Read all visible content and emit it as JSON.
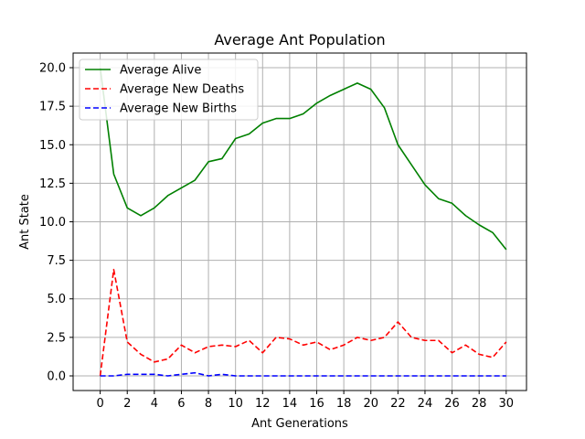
{
  "chart_data": {
    "type": "line",
    "title": "Average Ant Population",
    "xlabel": "Ant Generations",
    "ylabel": "Ant State",
    "xlim": [
      -2,
      31.5
    ],
    "ylim": [
      -0.95,
      20.95
    ],
    "xticks": [
      0,
      2,
      4,
      6,
      8,
      10,
      12,
      14,
      16,
      18,
      20,
      22,
      24,
      26,
      28,
      30
    ],
    "yticks": [
      0.0,
      2.5,
      5.0,
      7.5,
      10.0,
      12.5,
      15.0,
      17.5,
      20.0
    ],
    "ytick_labels": [
      "0.0",
      "2.5",
      "5.0",
      "7.5",
      "10.0",
      "12.5",
      "15.0",
      "17.5",
      "20.0"
    ],
    "grid": true,
    "legend_position": "top-left",
    "x": [
      0,
      1,
      2,
      3,
      4,
      5,
      6,
      7,
      8,
      9,
      10,
      11,
      12,
      13,
      14,
      15,
      16,
      17,
      18,
      19,
      20,
      21,
      22,
      23,
      24,
      25,
      26,
      27,
      28,
      29,
      30
    ],
    "series": [
      {
        "name": "Average Alive",
        "color": "#008000",
        "style": "solid",
        "values": [
          20.0,
          13.1,
          10.9,
          10.4,
          10.9,
          11.7,
          12.2,
          12.7,
          13.9,
          14.1,
          15.4,
          15.7,
          16.4,
          16.7,
          16.7,
          17.0,
          17.7,
          18.2,
          18.6,
          19.0,
          18.6,
          17.4,
          15.0,
          13.7,
          12.4,
          11.5,
          11.2,
          10.4,
          9.8,
          9.3,
          8.2
        ]
      },
      {
        "name": "Average New Deaths",
        "color": "#ff0000",
        "style": "dashed",
        "values": [
          0.0,
          6.9,
          2.2,
          1.4,
          0.9,
          1.1,
          2.0,
          1.5,
          1.9,
          2.0,
          1.9,
          2.3,
          1.5,
          2.5,
          2.4,
          2.0,
          2.2,
          1.7,
          2.0,
          2.5,
          2.3,
          2.5,
          3.5,
          2.5,
          2.3,
          2.3,
          1.5,
          2.0,
          1.4,
          1.2,
          2.2
        ]
      },
      {
        "name": "Average New Births",
        "color": "#0000ff",
        "style": "dashed",
        "values": [
          0.0,
          0.0,
          0.1,
          0.1,
          0.1,
          0.0,
          0.1,
          0.2,
          0.0,
          0.1,
          0.0,
          0.0,
          0.0,
          0.0,
          0.0,
          0.0,
          0.0,
          0.0,
          0.0,
          0.0,
          0.0,
          0.0,
          0.0,
          0.0,
          0.0,
          0.0,
          0.0,
          0.0,
          0.0,
          0.0,
          0.0
        ]
      }
    ]
  }
}
